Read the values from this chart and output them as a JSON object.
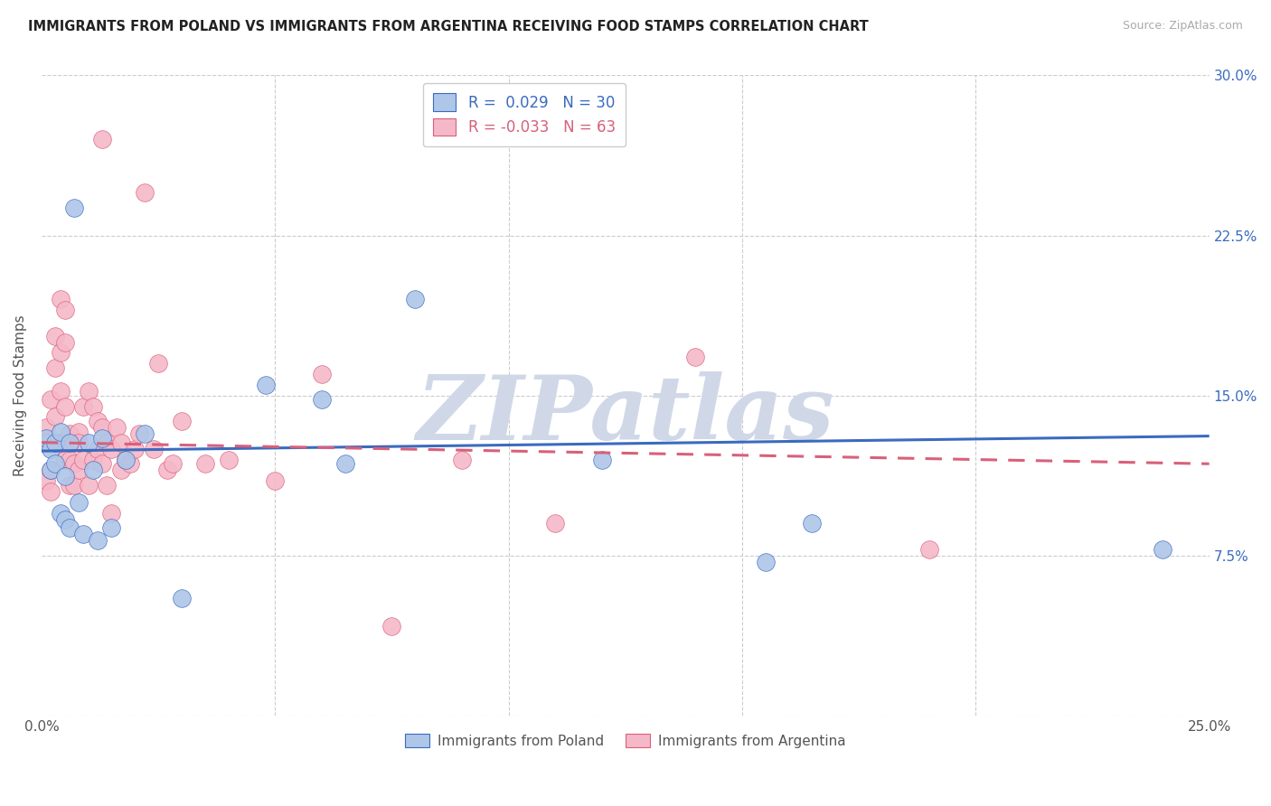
{
  "title": "IMMIGRANTS FROM POLAND VS IMMIGRANTS FROM ARGENTINA RECEIVING FOOD STAMPS CORRELATION CHART",
  "source": "Source: ZipAtlas.com",
  "ylabel": "Receiving Food Stamps",
  "xlim": [
    0.0,
    0.25
  ],
  "ylim": [
    0.0,
    0.3
  ],
  "poland_R": "0.029",
  "poland_N": "30",
  "argentina_R": "-0.033",
  "argentina_N": "63",
  "poland_color": "#aec6e8",
  "argentina_color": "#f5b8c8",
  "poland_line_color": "#3a6bbf",
  "argentina_line_color": "#d9607a",
  "legend_poland_label": "Immigrants from Poland",
  "legend_argentina_label": "Immigrants from Argentina",
  "poland_scatter_x": [
    0.001,
    0.002,
    0.002,
    0.003,
    0.003,
    0.004,
    0.004,
    0.005,
    0.005,
    0.006,
    0.006,
    0.007,
    0.008,
    0.009,
    0.01,
    0.011,
    0.012,
    0.013,
    0.015,
    0.018,
    0.022,
    0.03,
    0.048,
    0.06,
    0.065,
    0.08,
    0.12,
    0.155,
    0.165,
    0.24
  ],
  "poland_scatter_y": [
    0.13,
    0.125,
    0.115,
    0.128,
    0.118,
    0.133,
    0.095,
    0.112,
    0.092,
    0.128,
    0.088,
    0.238,
    0.1,
    0.085,
    0.128,
    0.115,
    0.082,
    0.13,
    0.088,
    0.12,
    0.132,
    0.055,
    0.155,
    0.148,
    0.118,
    0.195,
    0.12,
    0.072,
    0.09,
    0.078
  ],
  "argentina_scatter_x": [
    0.001,
    0.001,
    0.001,
    0.002,
    0.002,
    0.002,
    0.003,
    0.003,
    0.003,
    0.004,
    0.004,
    0.004,
    0.004,
    0.005,
    0.005,
    0.005,
    0.005,
    0.006,
    0.006,
    0.006,
    0.007,
    0.007,
    0.007,
    0.008,
    0.008,
    0.008,
    0.009,
    0.009,
    0.01,
    0.01,
    0.011,
    0.011,
    0.012,
    0.012,
    0.013,
    0.013,
    0.013,
    0.014,
    0.014,
    0.015,
    0.015,
    0.016,
    0.017,
    0.017,
    0.018,
    0.019,
    0.02,
    0.021,
    0.022,
    0.024,
    0.025,
    0.027,
    0.028,
    0.03,
    0.035,
    0.04,
    0.05,
    0.06,
    0.075,
    0.09,
    0.11,
    0.14,
    0.19
  ],
  "argentina_scatter_y": [
    0.135,
    0.128,
    0.11,
    0.148,
    0.115,
    0.105,
    0.178,
    0.163,
    0.14,
    0.195,
    0.17,
    0.152,
    0.128,
    0.19,
    0.175,
    0.145,
    0.12,
    0.132,
    0.12,
    0.108,
    0.128,
    0.118,
    0.108,
    0.133,
    0.128,
    0.115,
    0.145,
    0.12,
    0.152,
    0.108,
    0.145,
    0.12,
    0.138,
    0.125,
    0.135,
    0.118,
    0.27,
    0.128,
    0.108,
    0.125,
    0.095,
    0.135,
    0.128,
    0.115,
    0.12,
    0.118,
    0.125,
    0.132,
    0.245,
    0.125,
    0.165,
    0.115,
    0.118,
    0.138,
    0.118,
    0.12,
    0.11,
    0.16,
    0.042,
    0.12,
    0.09,
    0.168,
    0.078
  ],
  "poland_line_y0": 0.124,
  "poland_line_y1": 0.131,
  "argentina_line_y0": 0.128,
  "argentina_line_y1": 0.118,
  "watermark_text": "ZIPatlas",
  "watermark_color": "#d0d8e8",
  "background_color": "#ffffff"
}
